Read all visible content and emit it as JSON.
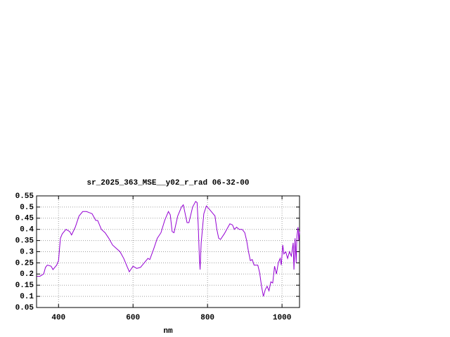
{
  "chart_data": {
    "type": "line",
    "title": "sr_2025_363_MSE__y02_r_rad 06-32-00",
    "xlabel": "nm",
    "xlim": [
      341,
      1047
    ],
    "xticks": [
      400,
      600,
      800,
      1000
    ],
    "ylim": [
      0.05,
      0.55
    ],
    "yticks": [
      0.05,
      0.1,
      0.15,
      0.2,
      0.25,
      0.3,
      0.35,
      0.4,
      0.45,
      0.5,
      0.55
    ],
    "grid": true,
    "series": [
      {
        "color": "#9400d3",
        "x": [
          342,
          350,
          360,
          365,
          370,
          380,
          385,
          395,
          400,
          405,
          410,
          420,
          430,
          435,
          445,
          455,
          465,
          475,
          490,
          500,
          505,
          515,
          525,
          535,
          545,
          555,
          565,
          575,
          585,
          590,
          600,
          610,
          620,
          630,
          640,
          645,
          655,
          665,
          675,
          685,
          690,
          695,
          700,
          705,
          710,
          720,
          730,
          735,
          740,
          745,
          750,
          760,
          768,
          772,
          775,
          778,
          780,
          783,
          790,
          797,
          805,
          815,
          820,
          825,
          830,
          835,
          845,
          855,
          860,
          867,
          872,
          878,
          885,
          893,
          900,
          905,
          910,
          915,
          920,
          925,
          935,
          940,
          945,
          950,
          955,
          960,
          965,
          970,
          975,
          980,
          985,
          990,
          995,
          998,
          1002,
          1005,
          1010,
          1015,
          1020,
          1025,
          1030,
          1032,
          1035,
          1038,
          1040,
          1043,
          1045,
          1047
        ],
        "values": [
          0.19,
          0.19,
          0.2,
          0.23,
          0.24,
          0.235,
          0.22,
          0.24,
          0.26,
          0.36,
          0.38,
          0.4,
          0.39,
          0.375,
          0.41,
          0.46,
          0.48,
          0.48,
          0.47,
          0.44,
          0.44,
          0.4,
          0.385,
          0.36,
          0.33,
          0.315,
          0.3,
          0.27,
          0.23,
          0.21,
          0.235,
          0.225,
          0.23,
          0.25,
          0.27,
          0.265,
          0.31,
          0.36,
          0.385,
          0.44,
          0.46,
          0.48,
          0.465,
          0.39,
          0.385,
          0.46,
          0.5,
          0.51,
          0.47,
          0.43,
          0.43,
          0.5,
          0.525,
          0.52,
          0.42,
          0.28,
          0.22,
          0.34,
          0.47,
          0.505,
          0.49,
          0.47,
          0.46,
          0.4,
          0.36,
          0.355,
          0.38,
          0.41,
          0.425,
          0.42,
          0.4,
          0.41,
          0.4,
          0.4,
          0.385,
          0.35,
          0.3,
          0.26,
          0.265,
          0.24,
          0.24,
          0.205,
          0.145,
          0.1,
          0.13,
          0.145,
          0.125,
          0.165,
          0.16,
          0.235,
          0.2,
          0.25,
          0.27,
          0.24,
          0.33,
          0.29,
          0.3,
          0.27,
          0.3,
          0.28,
          0.34,
          0.22,
          0.36,
          0.25,
          0.37,
          0.41,
          0.35,
          0.39
        ]
      }
    ]
  }
}
